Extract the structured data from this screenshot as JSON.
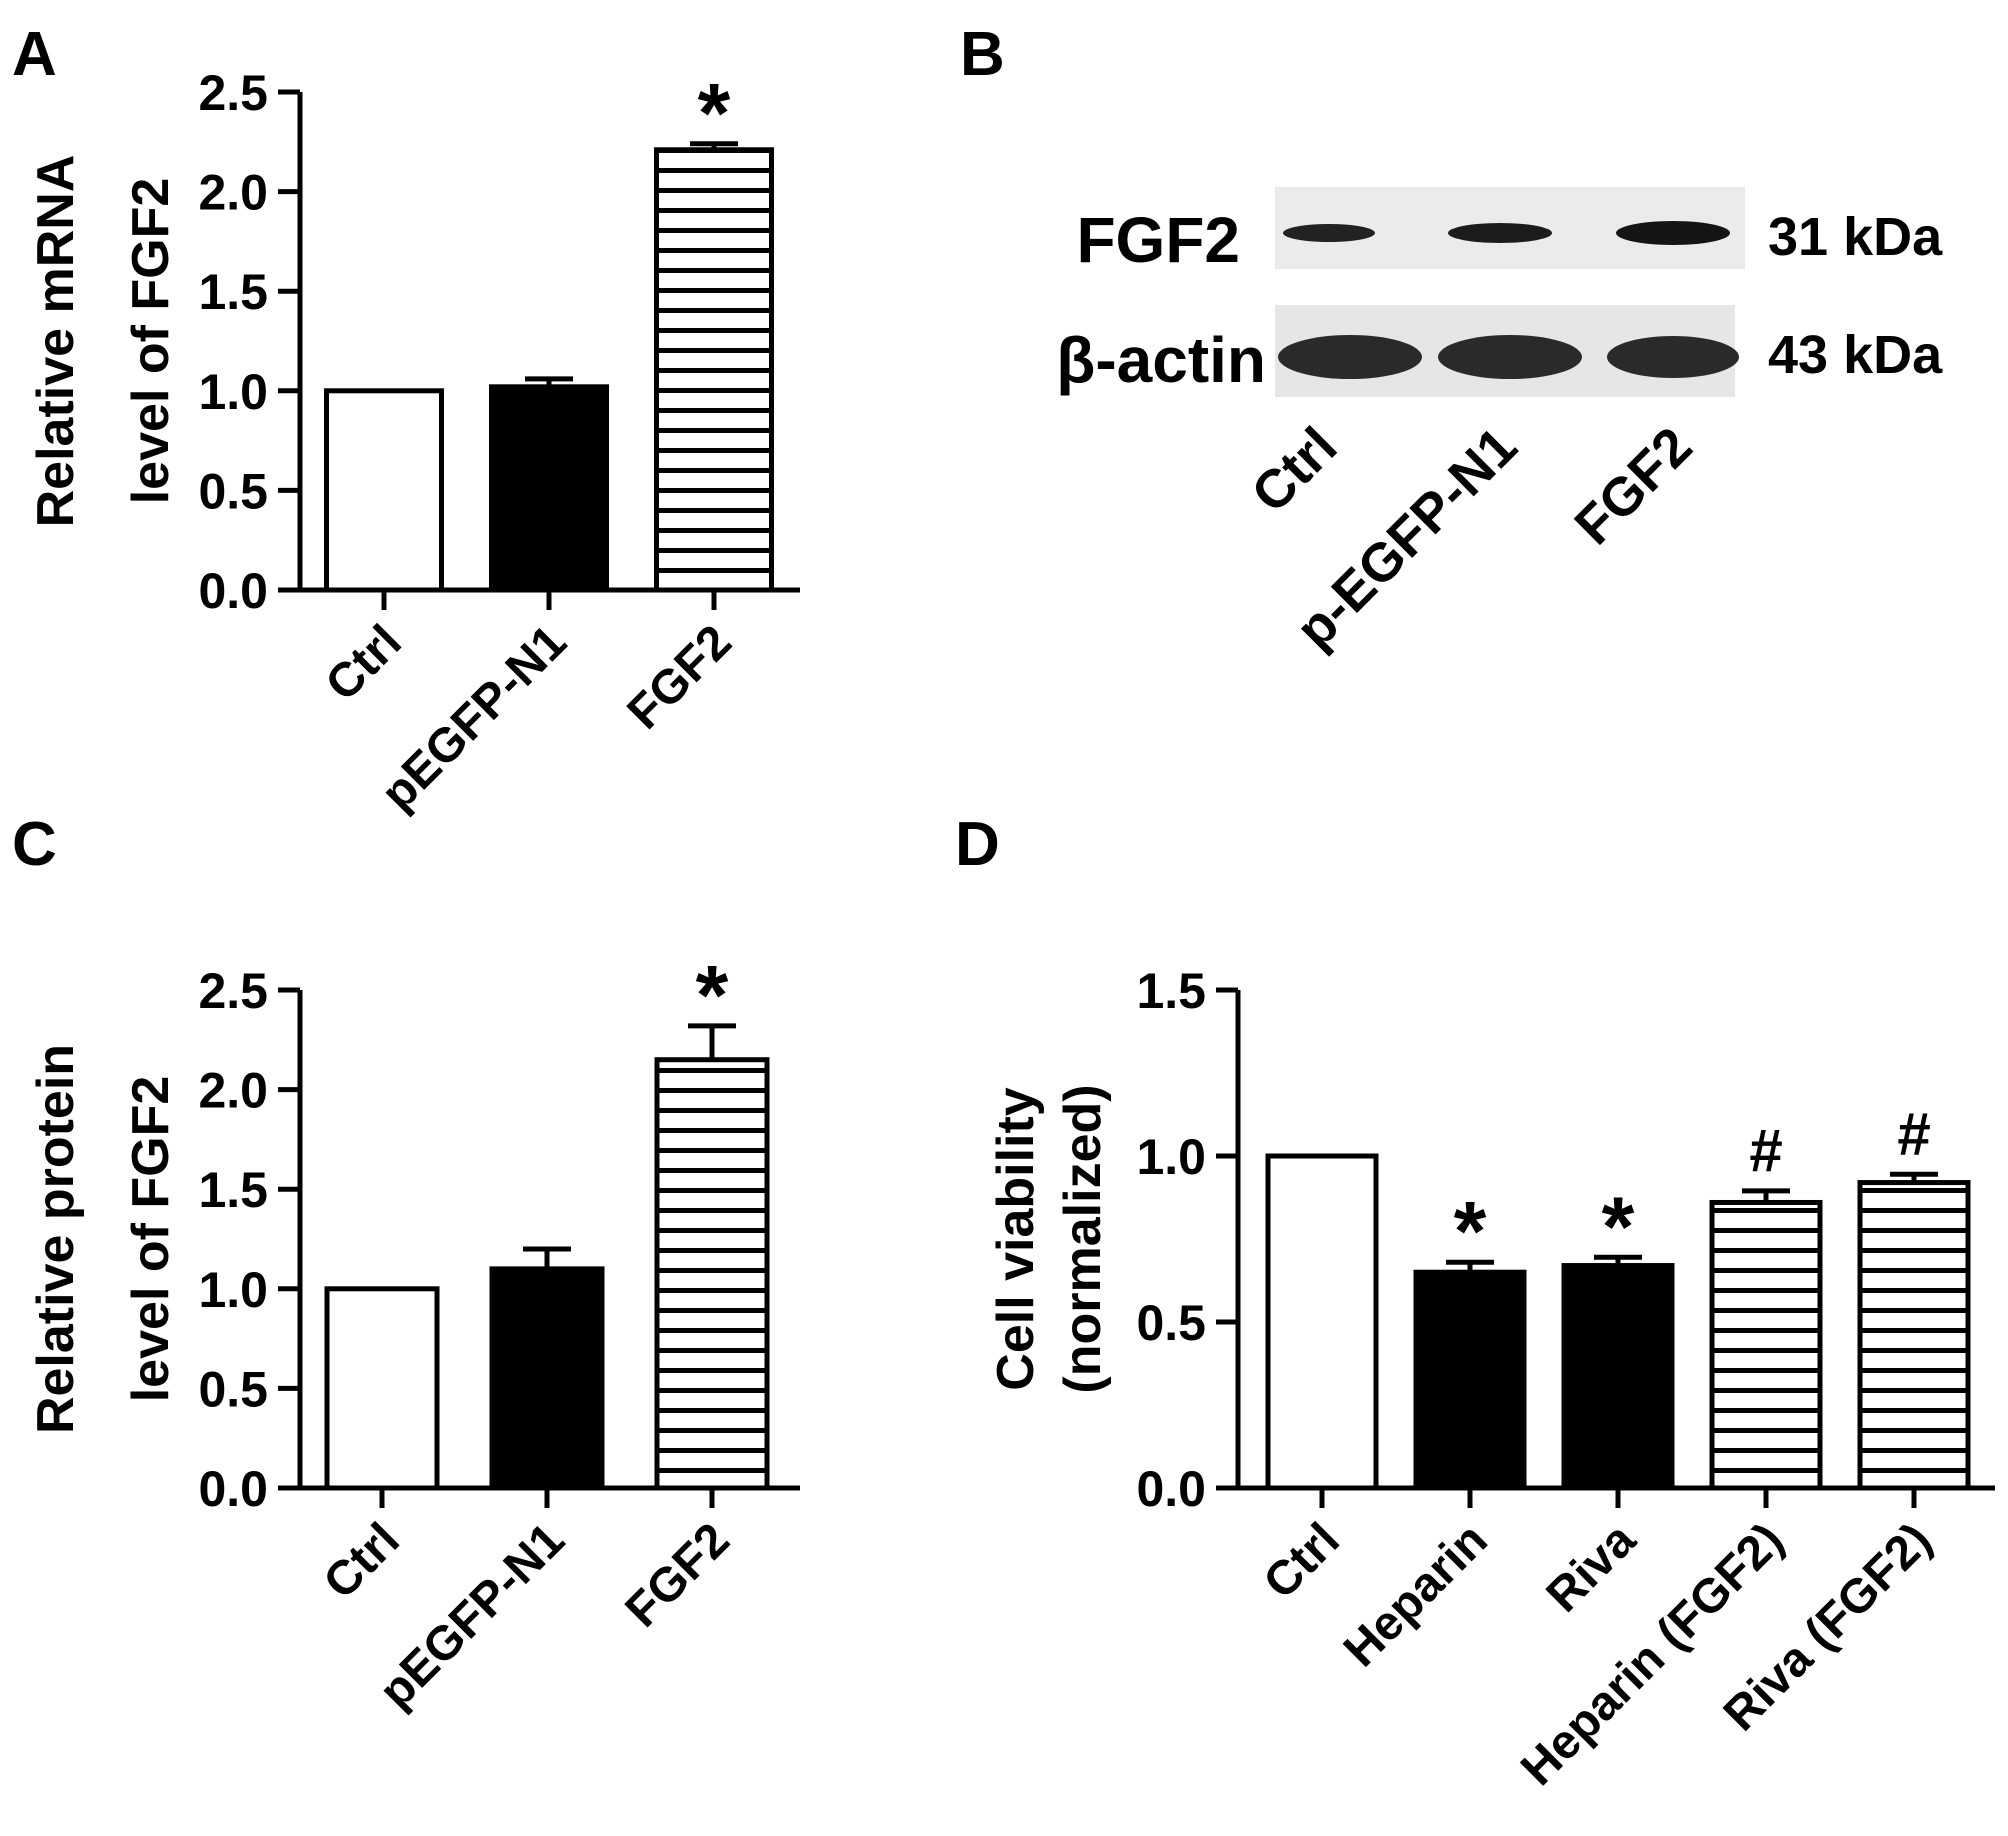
{
  "chart_data": [
    {
      "panel_label": "A",
      "type": "bar",
      "ylabel_lines": [
        "Relative mRNA",
        "level of FGF2"
      ],
      "ylim": [
        0,
        2.5
      ],
      "yticks": [
        "0.0",
        "0.5",
        "1.0",
        "1.5",
        "2.0",
        "2.5"
      ],
      "categories": [
        "Ctrl",
        "pEGFP-N1",
        "FGF2"
      ],
      "values": [
        1.0,
        1.02,
        2.21
      ],
      "errors": [
        0,
        0.04,
        0.03
      ],
      "styles": [
        "open",
        "filled",
        "striped"
      ],
      "annotations": [
        "",
        "",
        "*"
      ]
    },
    {
      "panel_label": "C",
      "type": "bar",
      "ylabel_lines": [
        "Relative protein",
        "level of FGF2"
      ],
      "ylim": [
        0,
        2.5
      ],
      "yticks": [
        "0.0",
        "0.5",
        "1.0",
        "1.5",
        "2.0",
        "2.5"
      ],
      "categories": [
        "Ctrl",
        "pEGFP-N1",
        "FGF2"
      ],
      "values": [
        1.0,
        1.1,
        2.15
      ],
      "errors": [
        0,
        0.1,
        0.17
      ],
      "styles": [
        "open",
        "filled",
        "striped"
      ],
      "annotations": [
        "",
        "",
        "*"
      ]
    },
    {
      "panel_label": "D",
      "type": "bar",
      "ylabel_lines": [
        "Cell viability",
        "(normalized)"
      ],
      "ylim": [
        0,
        1.5
      ],
      "yticks": [
        "0.0",
        "0.5",
        "1.0",
        "1.5"
      ],
      "categories": [
        "Ctrl",
        "Heparin",
        "Riva",
        "Heparin (FGF2)",
        "Riva (FGF2)"
      ],
      "values": [
        1.0,
        0.65,
        0.67,
        0.86,
        0.92
      ],
      "errors": [
        0,
        0.03,
        0.025,
        0.035,
        0.025
      ],
      "styles": [
        "open",
        "filled",
        "filled",
        "striped",
        "striped"
      ],
      "annotations": [
        "",
        "*",
        "*",
        "#",
        "#"
      ]
    }
  ],
  "blot": {
    "panel_label": "B",
    "rows": [
      {
        "protein": "FGF2",
        "size": "31 kDa"
      },
      {
        "protein": "β-actin",
        "size": "43 kDa"
      }
    ],
    "lanes": [
      "Ctrl",
      "p-EGFP-N1",
      "FGF2"
    ]
  }
}
